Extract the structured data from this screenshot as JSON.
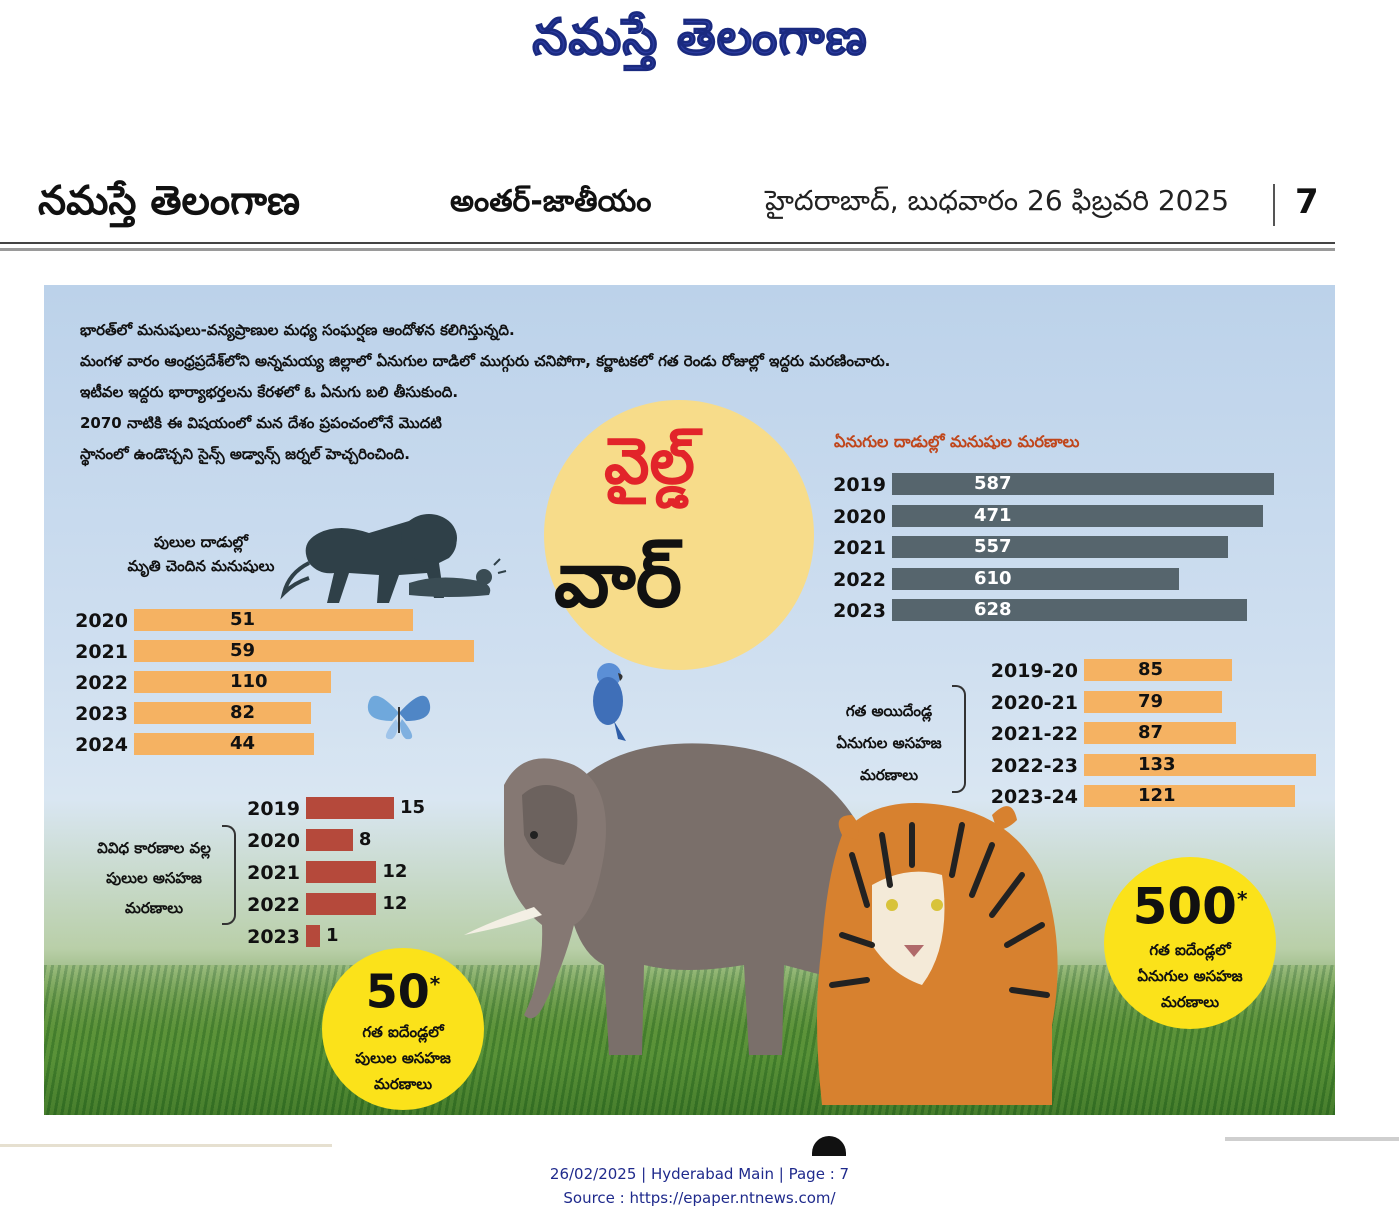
{
  "masthead": {
    "title": "నమస్తే తెలంగాణ"
  },
  "header": {
    "brand": "నమస్తే తెలంగాణ",
    "section": "అంతర్-జాతీయం",
    "dateline": "హైదరాబాద్, బుధవారం 26 ఫిబ్రవరి 2025",
    "page_number": "7"
  },
  "intro": {
    "line1": "భారత్‌లో మనుషులు-వన్యప్రాణుల మధ్య సంఘర్షణ ఆందోళన కలిగిస్తున్నది.",
    "line2": "మంగళ వారం ఆంధ్రప్రదేశ్‌లోని అన్నమయ్య జిల్లాలో ఏనుగుల దాడిలో ముగ్గురు చనిపోగా, కర్ణాటకలో గత రెండు రోజుల్లో ఇద్దరు మరణించారు.",
    "line3": "ఇటీవల ఇద్దరు భార్యాభర్తలను కేరళలో ఓ ఏనుగు బలి తీసుకుంది.",
    "line4": "2070 నాటికి ఈ విషయంలో మన దేశం ప్రపంచంలోనే మొదటి",
    "line5": "స్థానంలో ఉండొచ్చని సైన్స్ అడ్వాన్స్ జర్నల్ హెచ్చరించింది."
  },
  "title": {
    "top": "వైల్డ్",
    "bottom": "వార్"
  },
  "colors": {
    "orange_bar": "#f5b262",
    "slate_bar": "#56656d",
    "brown_bar": "#b5493b",
    "yellow_circle": "#fbe21a",
    "red_title": "#e2242a"
  },
  "chart_data": [
    {
      "type": "bar",
      "orientation": "horizontal",
      "title": "పులుల దాడుల్లో మృతి చెందిన మనుషులు",
      "title_line1": "పులుల దాడుల్లో",
      "title_line2": "మృతి చెందిన మనుషులు",
      "categories": [
        "2020",
        "2021",
        "2022",
        "2023",
        "2024"
      ],
      "values": [
        51,
        59,
        110,
        82,
        44
      ],
      "bar_length_fraction": [
        0.82,
        1.0,
        0.58,
        0.52,
        0.53
      ],
      "xlabel": "",
      "ylabel": ""
    },
    {
      "type": "bar",
      "orientation": "horizontal",
      "title": "ఏనుగుల దాడుల్లో మనుషుల మరణాలు",
      "categories": [
        "2019",
        "2020",
        "2021",
        "2022",
        "2023"
      ],
      "values": [
        587,
        471,
        557,
        610,
        628
      ],
      "bar_length_fraction": [
        1.0,
        0.97,
        0.88,
        0.75,
        0.93
      ],
      "xlabel": "",
      "ylabel": ""
    },
    {
      "type": "bar",
      "orientation": "horizontal",
      "title": "గత అయిదేండ్ల ఏనుగుల అసహజ మరణాలు",
      "title_lines": [
        "గత అయిదేండ్ల",
        "ఏనుగుల అసహజ",
        "మరణాలు"
      ],
      "categories": [
        "2019-20",
        "2020-21",
        "2021-22",
        "2022-23",
        "2023-24"
      ],
      "values": [
        85,
        79,
        87,
        133,
        121
      ],
      "xlabel": "",
      "ylabel": ""
    },
    {
      "type": "bar",
      "orientation": "horizontal",
      "title": "వివిధ కారణాల వల్ల పులుల అసహజ మరణాలు",
      "title_lines": [
        "వివిధ కారణాల వల్ల",
        "పులుల అసహజ",
        "మరణాలు"
      ],
      "categories": [
        "2019",
        "2020",
        "2021",
        "2022",
        "2023"
      ],
      "values": [
        15,
        8,
        12,
        12,
        1
      ],
      "xlabel": "",
      "ylabel": ""
    }
  ],
  "callouts": {
    "tigers": {
      "number": "50",
      "star": "*",
      "line1": "గత ఐదేండ్లలో",
      "line2": "పులుల అసహజ",
      "line3": "మరణాలు"
    },
    "elephants": {
      "number": "500",
      "star": "*",
      "line1": "గత ఐదేండ్లలో",
      "line2": "ఏనుగుల అసహజ",
      "line3": "మరణాలు"
    }
  },
  "footer": {
    "line1": "26/02/2025 | Hyderabad Main | Page : 7",
    "line2": "Source : https://epaper.ntnews.com/"
  }
}
